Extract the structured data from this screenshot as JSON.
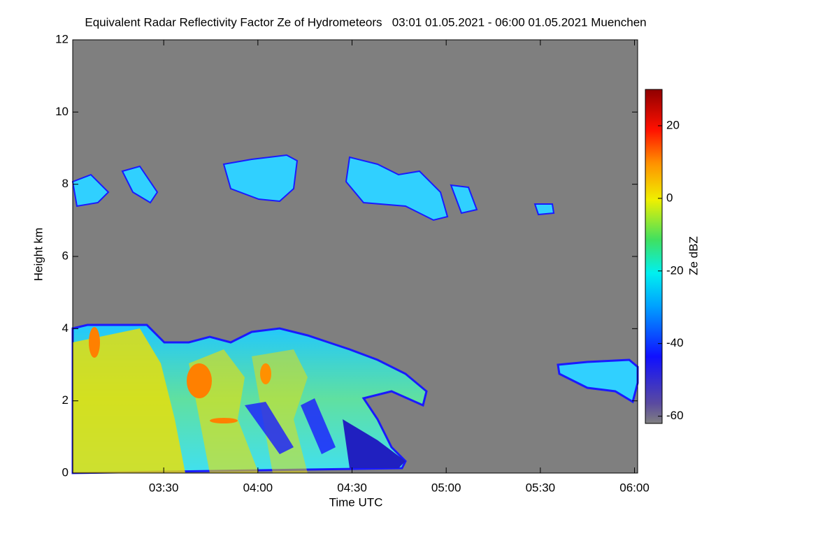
{
  "chart_data": {
    "type": "heatmap",
    "title": "Equivalent Radar Reflectivity Factor Ze of Hydrometeors   03:01 01.05.2021 - 06:00 01.05.2021 Muenchen",
    "x_label": "Time UTC",
    "y_label": "Height km",
    "colorbar_label": "Ze dBZ",
    "xlim": [
      181,
      361
    ],
    "xticks": [
      {
        "value": 210,
        "label": "03:30"
      },
      {
        "value": 240,
        "label": "04:00"
      },
      {
        "value": 270,
        "label": "04:30"
      },
      {
        "value": 300,
        "label": "05:00"
      },
      {
        "value": 330,
        "label": "05:30"
      },
      {
        "value": 360,
        "label": "06:00"
      }
    ],
    "ylim": [
      0,
      12
    ],
    "yticks": [
      0,
      2,
      4,
      6,
      8,
      10,
      12
    ],
    "zlim": [
      -62,
      30
    ],
    "zticks": [
      -60,
      -40,
      -20,
      0,
      20
    ]
  }
}
